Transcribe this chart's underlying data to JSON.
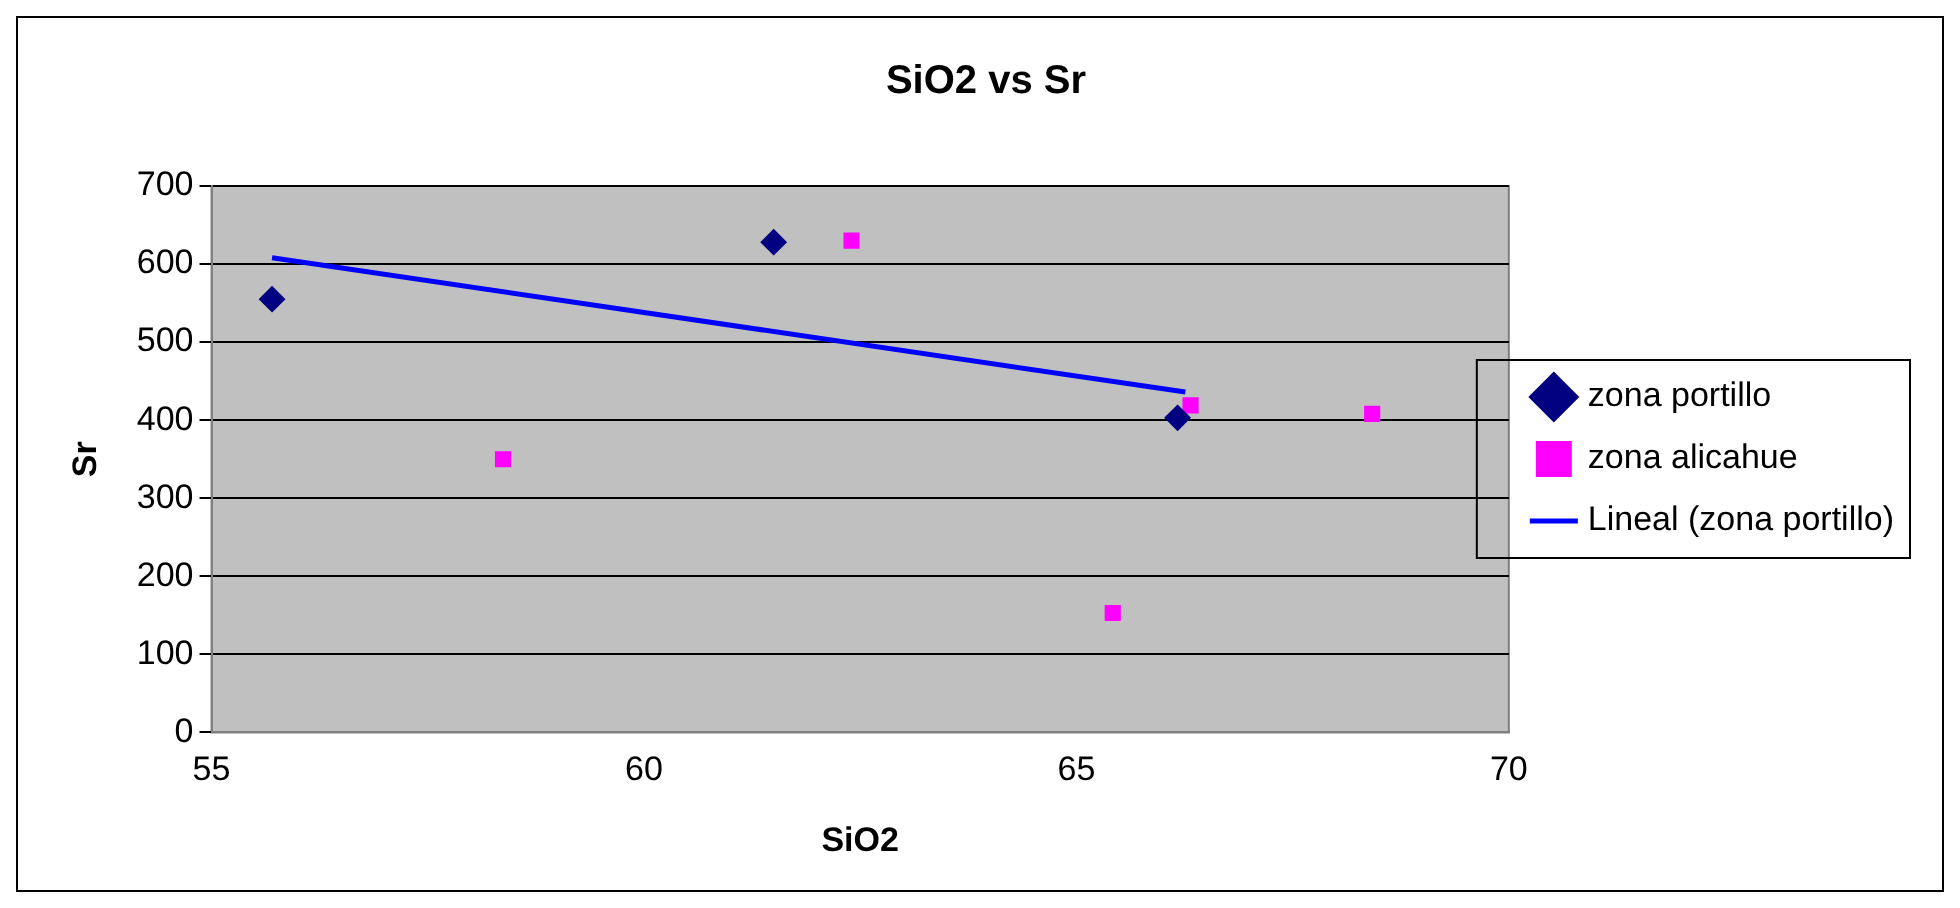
{
  "chart_data": {
    "type": "scatter",
    "title": "SiO2 vs Sr",
    "xlabel": "SiO2",
    "ylabel": "Sr",
    "xlim": [
      55,
      70
    ],
    "xticks": [
      55,
      60,
      65,
      70
    ],
    "ylim": [
      0,
      700
    ],
    "yticks": [
      0,
      100,
      200,
      300,
      400,
      500,
      600,
      700
    ],
    "grid": "y",
    "legend": "right",
    "series": [
      {
        "name": "zona portillo",
        "color": "#000080",
        "marker": "diamond",
        "x": [
          55.7,
          61.5,
          66.17
        ],
        "values": [
          555,
          628,
          403
        ]
      },
      {
        "name": "zona alicahue",
        "color": "#ff00ff",
        "marker": "square",
        "x": [
          58.37,
          62.4,
          65.42,
          66.32,
          68.42
        ],
        "values": [
          350,
          630,
          153,
          419,
          408
        ]
      },
      {
        "name": "Lineal (zona portillo)",
        "type": "line",
        "color": "#0000ff",
        "marker": "none",
        "x": [
          55.7,
          66.26
        ],
        "values": [
          608,
          436
        ]
      }
    ]
  }
}
